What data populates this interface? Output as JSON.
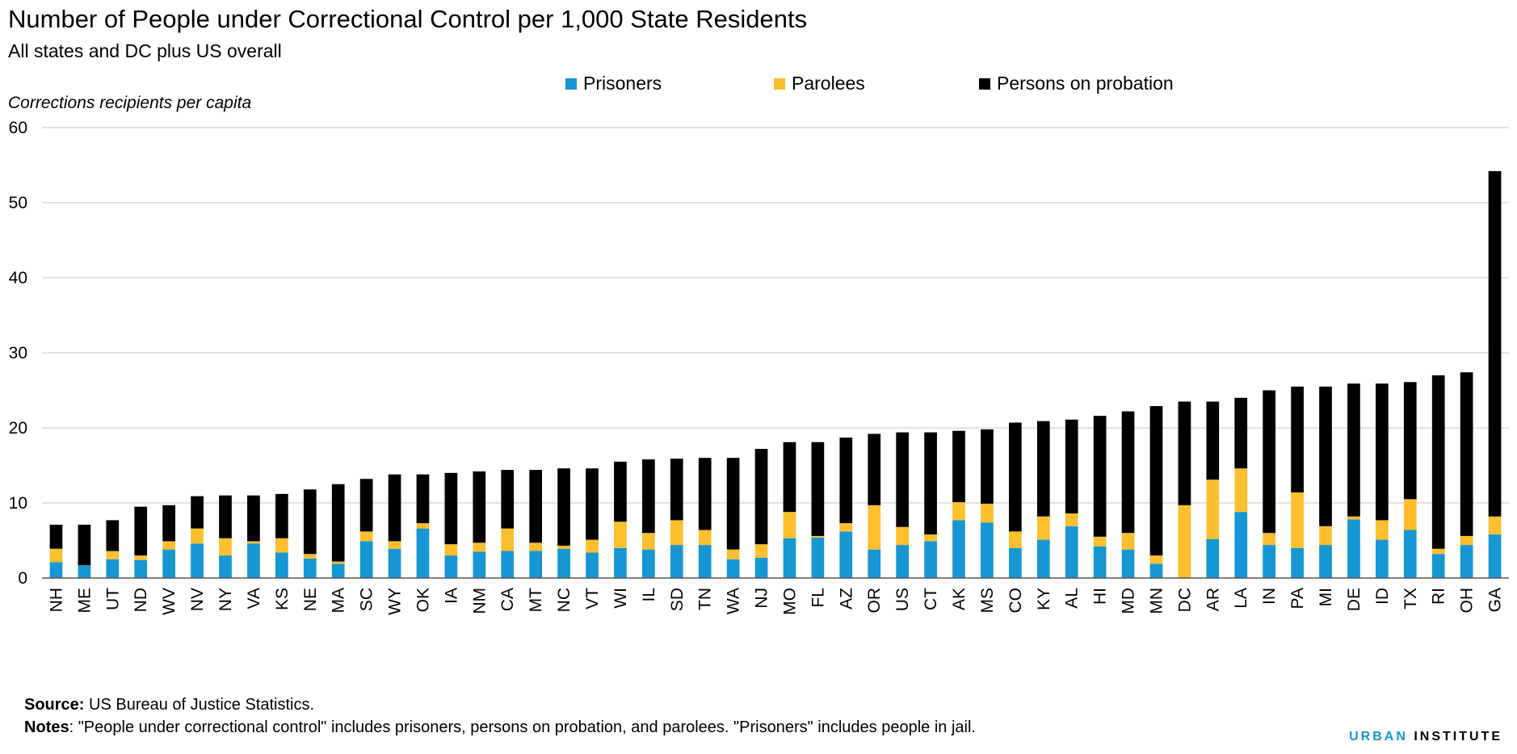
{
  "colors": {
    "prisoners": "#1696d2",
    "parolees": "#fdbf2e",
    "probation": "#000000",
    "grid": "#d2d2d2",
    "axis": "#555555"
  },
  "footer": {
    "source_label": "Source:",
    "source_text": " US Bureau of Justice Statistics.",
    "notes_label": "Notes",
    "notes_text": ": \"People under correctional control\" includes prisoners, persons on probation, and parolees. \"Prisoners\" includes people in jail.",
    "brand_urban": "URBAN",
    "brand_institute": "INSTITUTE"
  },
  "chart_data": {
    "type": "bar",
    "stacked": true,
    "title": "Number of People under Correctional Control per 1,000 State Residents",
    "subtitle": "All states and DC plus US overall",
    "ylabel": "Corrections recipients per capita",
    "ylim": [
      0,
      60
    ],
    "yticks": [
      0,
      10,
      20,
      30,
      40,
      50,
      60
    ],
    "grid": true,
    "legend_position": "top",
    "categories": [
      "NH",
      "ME",
      "UT",
      "ND",
      "WV",
      "NV",
      "NY",
      "VA",
      "KS",
      "NE",
      "MA",
      "SC",
      "WY",
      "OK",
      "IA",
      "NM",
      "CA",
      "MT",
      "NC",
      "VT",
      "WI",
      "IL",
      "SD",
      "TN",
      "WA",
      "NJ",
      "MO",
      "FL",
      "AZ",
      "OR",
      "US",
      "CT",
      "AK",
      "MS",
      "CO",
      "KY",
      "AL",
      "HI",
      "MD",
      "MN",
      "DC",
      "AR",
      "LA",
      "IN",
      "PA",
      "MI",
      "DE",
      "ID",
      "TX",
      "RI",
      "OH",
      "GA"
    ],
    "series": [
      {
        "name": "Prisoners",
        "values": [
          2.1,
          1.7,
          2.5,
          2.4,
          3.8,
          4.6,
          3.0,
          4.6,
          3.4,
          2.6,
          1.9,
          4.9,
          3.9,
          6.6,
          3.0,
          3.5,
          3.6,
          3.6,
          3.9,
          3.4,
          4.0,
          3.8,
          4.4,
          4.4,
          2.5,
          2.7,
          5.3,
          5.4,
          6.2,
          3.8,
          4.4,
          4.9,
          7.7,
          7.4,
          4.0,
          5.1,
          6.9,
          4.2,
          3.8,
          1.9,
          0.0,
          5.2,
          8.8,
          4.4,
          4.0,
          4.4,
          7.8,
          5.1,
          6.4,
          3.2,
          4.4,
          5.8
        ]
      },
      {
        "name": "Parolees",
        "values": [
          1.8,
          0.0,
          1.1,
          0.6,
          1.1,
          2.0,
          2.3,
          0.3,
          1.9,
          0.6,
          0.3,
          1.3,
          1.0,
          0.7,
          1.5,
          1.2,
          3.0,
          1.1,
          0.4,
          1.7,
          3.5,
          2.2,
          3.3,
          2.0,
          1.3,
          1.8,
          3.5,
          0.2,
          1.1,
          5.9,
          2.4,
          0.9,
          2.4,
          2.5,
          2.2,
          3.1,
          1.7,
          1.3,
          2.2,
          1.1,
          9.7,
          7.9,
          5.8,
          1.6,
          7.4,
          2.5,
          0.4,
          2.6,
          4.1,
          0.7,
          1.2,
          2.4
        ]
      },
      {
        "name": "Persons on probation",
        "values": [
          3.2,
          5.4,
          4.1,
          6.5,
          4.8,
          4.3,
          5.7,
          6.1,
          5.9,
          8.6,
          10.3,
          7.0,
          8.9,
          6.5,
          9.5,
          9.5,
          7.8,
          9.7,
          10.3,
          9.5,
          8.0,
          9.8,
          8.2,
          9.6,
          12.2,
          12.7,
          9.3,
          12.5,
          11.4,
          9.5,
          12.6,
          13.6,
          9.5,
          9.9,
          14.5,
          12.7,
          12.5,
          16.1,
          16.2,
          19.9,
          13.8,
          10.4,
          9.4,
          19.0,
          14.1,
          18.6,
          17.7,
          18.2,
          15.6,
          23.1,
          21.8,
          46.0
        ]
      }
    ]
  }
}
